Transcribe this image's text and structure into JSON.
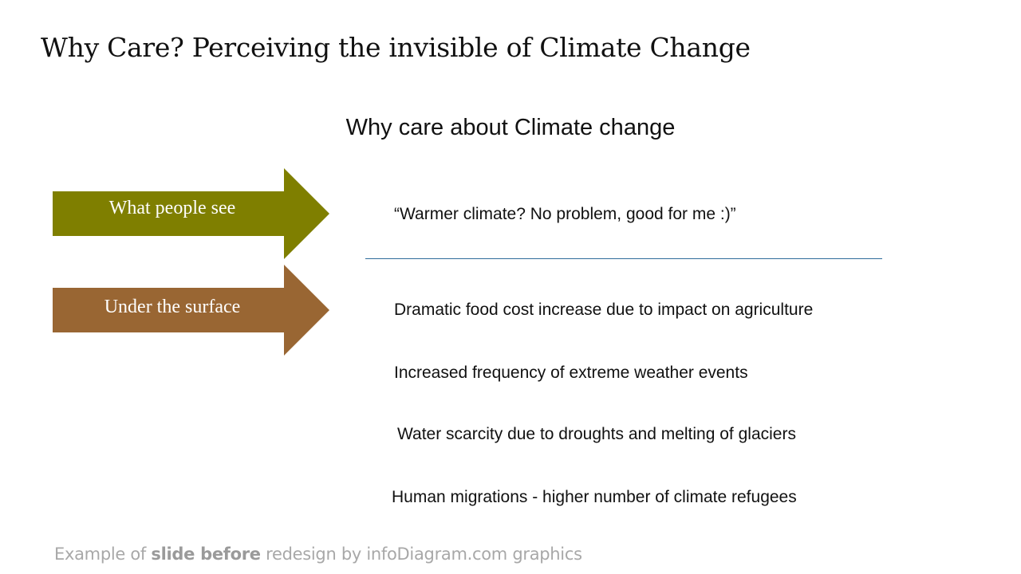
{
  "slide": {
    "title": "Why Care? Perceiving the invisible of Climate Change",
    "subtitle": "Why care about Climate change"
  },
  "arrows": [
    {
      "label": "What people see",
      "color": "#7f7f00"
    },
    {
      "label": "Under the surface",
      "color": "#996633"
    }
  ],
  "quote": "“Warmer climate? No problem, good for me :)”",
  "items": [
    "Dramatic food cost increase due to impact on agriculture",
    "Increased frequency of extreme weather events",
    "Water scarcity due to droughts and melting of glaciers",
    "Human migrations - higher number of climate refugees"
  ],
  "divider_color": "#2e6c9b",
  "footer": {
    "prefix": "Example of ",
    "bold": "slide before",
    "suffix": " redesign by infoDiagram.com graphics"
  }
}
